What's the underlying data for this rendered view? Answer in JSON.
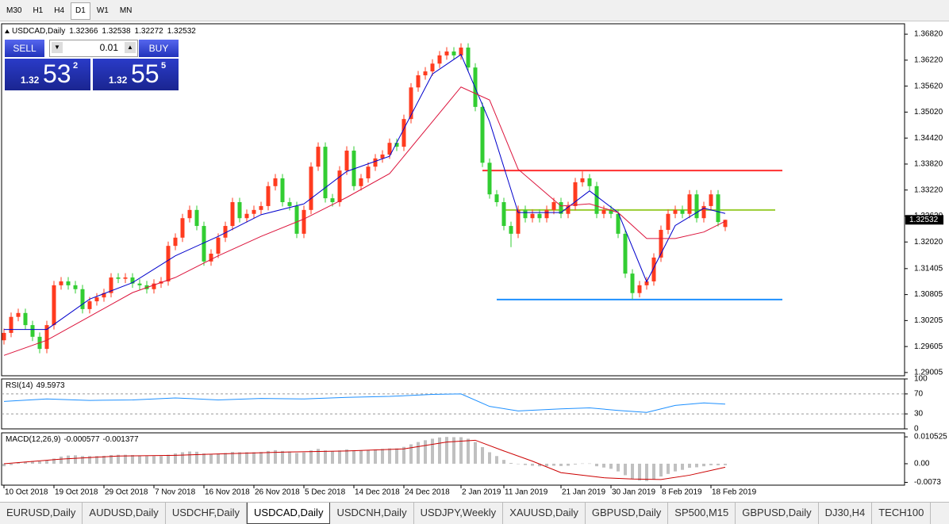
{
  "toolbar": [
    {
      "label": "M30",
      "active": false
    },
    {
      "label": "H1",
      "active": false
    },
    {
      "label": "H4",
      "active": false
    },
    {
      "label": "D1",
      "active": true
    },
    {
      "label": "W1",
      "active": false
    },
    {
      "label": "MN",
      "active": false
    }
  ],
  "trade_panel": {
    "sell": "SELL",
    "buy": "BUY",
    "lot": "0.01",
    "sell_price": {
      "big": "1.32",
      "pips": "53",
      "fraction": "2"
    },
    "buy_price": {
      "big": "1.32",
      "pips": "55",
      "fraction": "5"
    }
  },
  "tabs": [
    {
      "label": "EURUSD,Daily",
      "active": false
    },
    {
      "label": "AUDUSD,Daily",
      "active": false
    },
    {
      "label": "USDCHF,Daily",
      "active": false
    },
    {
      "label": "USDCAD,Daily",
      "active": true
    },
    {
      "label": "USDCNH,Daily",
      "active": false
    },
    {
      "label": "USDJPY,Weekly",
      "active": false
    },
    {
      "label": "XAUUSD,Daily",
      "active": false
    },
    {
      "label": "GBPUSD,Daily",
      "active": false
    },
    {
      "label": "SP500,M15",
      "active": false
    },
    {
      "label": "GBPUSD,Daily",
      "active": false
    },
    {
      "label": "DJ30,H4",
      "active": false
    },
    {
      "label": "TECH100",
      "active": false
    }
  ],
  "chart_data": [
    {
      "type": "candlestick",
      "title": "USDCAD,Daily",
      "up_color": "#ff3b1f",
      "down_color": "#32cd32",
      "categories": [
        "10 Oct 2018",
        null,
        null,
        null,
        null,
        null,
        null,
        "19 Oct 2018",
        null,
        null,
        null,
        null,
        null,
        null,
        "29 Oct 2018",
        null,
        null,
        null,
        null,
        null,
        null,
        "7 Nov 2018",
        null,
        null,
        null,
        null,
        null,
        null,
        "16 Nov 2018",
        null,
        null,
        null,
        null,
        null,
        null,
        "26 Nov 2018",
        null,
        null,
        null,
        null,
        null,
        null,
        "5 Dec 2018",
        null,
        null,
        null,
        null,
        null,
        null,
        "14 Dec 2018",
        null,
        null,
        null,
        null,
        null,
        null,
        "24 Dec 2018",
        null,
        null,
        null,
        null,
        null,
        null,
        null,
        "2 Jan 2019",
        null,
        null,
        null,
        null,
        null,
        "11 Jan 2019",
        null,
        null,
        null,
        null,
        null,
        null,
        null,
        "21 Jan 2019",
        null,
        null,
        null,
        null,
        null,
        null,
        "30 Jan 2019",
        null,
        null,
        null,
        null,
        null,
        null,
        "8 Feb 2019",
        null,
        null,
        null,
        null,
        null,
        null,
        "18 Feb 2019",
        null,
        null
      ],
      "open": [
        1.2975,
        1.2992,
        1.3029,
        1.3038,
        1.301,
        1.2983,
        1.2955,
        1.301,
        1.3102,
        1.3111,
        1.3102,
        1.3093,
        1.3047,
        1.3065,
        1.3074,
        1.3084,
        1.312,
        1.3117,
        1.312,
        1.3106,
        1.3102,
        1.3093,
        1.3106,
        1.3111,
        1.3193,
        1.3212,
        1.3257,
        1.3276,
        1.3239,
        1.3157,
        1.3175,
        1.3212,
        1.3239,
        1.3294,
        1.3257,
        1.3267,
        1.3276,
        1.3285,
        1.3331,
        1.3349,
        1.3294,
        1.3285,
        1.3221,
        1.3276,
        1.3376,
        1.3422,
        1.3303,
        1.3294,
        1.3367,
        1.3413,
        1.3331,
        1.3349,
        1.3376,
        1.3395,
        1.3404,
        1.3431,
        1.3422,
        1.3486,
        1.3559,
        1.3587,
        1.3596,
        1.3614,
        1.3633,
        1.3642,
        1.3633,
        1.3651,
        1.3605,
        1.3514,
        1.3385,
        1.3312,
        1.3294,
        1.3239,
        1.3221,
        1.3276,
        1.3257,
        1.3267,
        1.3257,
        1.3276,
        1.3294,
        1.3267,
        1.3285,
        1.334,
        1.3349,
        1.3331,
        1.3267,
        1.3276,
        1.3267,
        1.3221,
        1.3129,
        1.3084,
        1.3102,
        1.3111,
        1.3166,
        1.323,
        1.3267,
        1.3276,
        1.3267,
        1.3312,
        1.3257,
        1.3285,
        1.3312,
        1.32366
      ],
      "high": [
        1.3002,
        1.3039,
        1.3048,
        1.3048,
        1.302,
        1.2993,
        1.302,
        1.3112,
        1.3121,
        1.3121,
        1.3112,
        1.3103,
        1.3075,
        1.3084,
        1.3094,
        1.313,
        1.313,
        1.313,
        1.313,
        1.3116,
        1.3112,
        1.3116,
        1.3121,
        1.3203,
        1.3222,
        1.3267,
        1.3286,
        1.3286,
        1.3249,
        1.3185,
        1.3222,
        1.3249,
        1.3304,
        1.3304,
        1.3277,
        1.3286,
        1.3295,
        1.3341,
        1.3359,
        1.3359,
        1.3304,
        1.3295,
        1.3286,
        1.3386,
        1.3432,
        1.3432,
        1.3313,
        1.3377,
        1.3423,
        1.3423,
        1.3359,
        1.3386,
        1.3405,
        1.3414,
        1.3441,
        1.3441,
        1.3496,
        1.3569,
        1.3597,
        1.3606,
        1.3624,
        1.3643,
        1.3652,
        1.3652,
        1.3661,
        1.3661,
        1.3615,
        1.3524,
        1.3395,
        1.3322,
        1.3304,
        1.3249,
        1.3286,
        1.3286,
        1.3277,
        1.3277,
        1.3286,
        1.3304,
        1.3304,
        1.3295,
        1.335,
        1.3365,
        1.3359,
        1.3341,
        1.3286,
        1.3286,
        1.3277,
        1.3231,
        1.3139,
        1.3112,
        1.3121,
        1.3176,
        1.324,
        1.3277,
        1.3286,
        1.3286,
        1.3322,
        1.3322,
        1.3295,
        1.3322,
        1.3322,
        1.32538
      ],
      "low": [
        1.2965,
        1.2982,
        1.3019,
        1.3,
        1.2973,
        1.2945,
        1.2945,
        1.3,
        1.3092,
        1.3092,
        1.3083,
        1.3037,
        1.3037,
        1.3055,
        1.3064,
        1.3074,
        1.3107,
        1.3107,
        1.3096,
        1.3092,
        1.3083,
        1.3083,
        1.3096,
        1.3101,
        1.3183,
        1.3202,
        1.3247,
        1.3229,
        1.3147,
        1.3147,
        1.3165,
        1.3202,
        1.3229,
        1.3247,
        1.3247,
        1.3257,
        1.3266,
        1.3275,
        1.3321,
        1.3284,
        1.3275,
        1.3211,
        1.3211,
        1.3266,
        1.3366,
        1.3293,
        1.3284,
        1.3284,
        1.3357,
        1.3321,
        1.3321,
        1.3339,
        1.3366,
        1.3385,
        1.3394,
        1.3412,
        1.3412,
        1.3476,
        1.3549,
        1.3577,
        1.3586,
        1.3604,
        1.3623,
        1.3623,
        1.3623,
        1.3595,
        1.3504,
        1.3375,
        1.3302,
        1.3284,
        1.3229,
        1.319,
        1.3211,
        1.3247,
        1.3247,
        1.3247,
        1.3247,
        1.3266,
        1.3257,
        1.3257,
        1.3275,
        1.333,
        1.3321,
        1.3257,
        1.3257,
        1.3257,
        1.3211,
        1.3119,
        1.307,
        1.3074,
        1.3092,
        1.3101,
        1.3156,
        1.322,
        1.3257,
        1.3257,
        1.3257,
        1.3247,
        1.3247,
        1.3275,
        1.3238,
        1.32272
      ],
      "close": [
        1.2992,
        1.3029,
        1.3038,
        1.301,
        1.2983,
        1.2955,
        1.301,
        1.3102,
        1.3111,
        1.3102,
        1.3093,
        1.3047,
        1.3065,
        1.3074,
        1.3084,
        1.312,
        1.3117,
        1.312,
        1.3106,
        1.3102,
        1.3093,
        1.3106,
        1.3111,
        1.3193,
        1.3212,
        1.3257,
        1.3276,
        1.3239,
        1.3157,
        1.3175,
        1.3212,
        1.3239,
        1.3294,
        1.3257,
        1.3267,
        1.3276,
        1.3285,
        1.3331,
        1.3349,
        1.3294,
        1.3285,
        1.3221,
        1.3276,
        1.3376,
        1.3422,
        1.3303,
        1.3294,
        1.3367,
        1.3413,
        1.3331,
        1.3349,
        1.3376,
        1.3395,
        1.3404,
        1.3431,
        1.3422,
        1.3486,
        1.3559,
        1.3587,
        1.3596,
        1.3614,
        1.3633,
        1.3642,
        1.3633,
        1.3651,
        1.3605,
        1.3514,
        1.3385,
        1.3312,
        1.3294,
        1.3239,
        1.3221,
        1.3276,
        1.3257,
        1.3267,
        1.3257,
        1.3276,
        1.3294,
        1.3267,
        1.3285,
        1.334,
        1.3349,
        1.3331,
        1.3267,
        1.3276,
        1.3267,
        1.3221,
        1.3129,
        1.3084,
        1.3102,
        1.3111,
        1.3166,
        1.323,
        1.3267,
        1.3276,
        1.3267,
        1.3312,
        1.3257,
        1.3285,
        1.3312,
        1.3248,
        1.32532
      ],
      "ma": [
        {
          "color": "#0000cc",
          "x": [
            0,
            6,
            12,
            18,
            24,
            30,
            36,
            42,
            48,
            54,
            60,
            64,
            68,
            72,
            78,
            82,
            86,
            90,
            94,
            98,
            101
          ],
          "values": [
            1.3,
            1.3,
            1.307,
            1.3108,
            1.317,
            1.3215,
            1.3265,
            1.329,
            1.3365,
            1.34,
            1.359,
            1.3635,
            1.348,
            1.327,
            1.327,
            1.332,
            1.327,
            1.311,
            1.324,
            1.328,
            1.3268
          ]
        },
        {
          "color": "#dc143c",
          "x": [
            0,
            6,
            12,
            18,
            24,
            30,
            36,
            42,
            48,
            54,
            60,
            64,
            68,
            72,
            78,
            82,
            86,
            90,
            94,
            98,
            101
          ],
          "values": [
            1.294,
            1.2975,
            1.303,
            1.3085,
            1.312,
            1.317,
            1.3215,
            1.3255,
            1.3305,
            1.336,
            1.348,
            1.356,
            1.353,
            1.337,
            1.3285,
            1.329,
            1.327,
            1.321,
            1.321,
            1.3225,
            1.325
          ]
        }
      ],
      "levels": [
        {
          "price": 1.3367,
          "color": "#ff3030",
          "start": 67,
          "end": 109
        },
        {
          "price": 1.3276,
          "color": "#9acd32",
          "start": 70,
          "end": 108
        },
        {
          "price": 1.3069,
          "color": "#1e90ff",
          "start": 69,
          "end": 109
        }
      ],
      "ylim": [
        1.2893,
        1.3706
      ],
      "yticks": [
        {
          "value": 1.3682,
          "label": "1.36820"
        },
        {
          "value": 1.3622,
          "label": "1.36220"
        },
        {
          "value": 1.3562,
          "label": "1.35620"
        },
        {
          "value": 1.3502,
          "label": "1.35020"
        },
        {
          "value": 1.3442,
          "label": "1.34420"
        },
        {
          "value": 1.3382,
          "label": "1.33820"
        },
        {
          "value": 1.3322,
          "label": "1.33220"
        },
        {
          "value": 1.3262,
          "label": "1.32620"
        },
        {
          "value": 1.3202,
          "label": "1.32020"
        },
        1.31405,
        1.30805,
        1.30205,
        1.29605,
        1.29005
      ]
    },
    {
      "type": "line",
      "title": "RSI(14)",
      "color": "#1e90ff",
      "x": [
        0,
        6,
        12,
        18,
        24,
        30,
        36,
        42,
        48,
        54,
        60,
        64,
        68,
        72,
        78,
        82,
        86,
        90,
        94,
        98,
        101
      ],
      "values": [
        55,
        60,
        57,
        58,
        62,
        58,
        61,
        60,
        63,
        65,
        69,
        70,
        45,
        36,
        40,
        42,
        37,
        33,
        47,
        52,
        49.5973
      ],
      "ylim": [
        0,
        100
      ],
      "yticks": [
        100,
        70,
        30,
        0
      ],
      "levels": [
        70,
        30
      ]
    },
    {
      "type": "macd",
      "title": "MACD(12,26,9)",
      "ylim": [
        -0.0084,
        0.0121
      ],
      "yticks": [
        0.010525,
        {
          "value": 0,
          "label": "0.00"
        },
        -0.0073
      ],
      "histogram": {
        "color": "#c0c0c0",
        "values": [
          -0.001,
          -0.0005,
          0.0003,
          0.0008,
          0.001,
          0.0009,
          0.0012,
          0.002,
          0.0028,
          0.0032,
          0.0033,
          0.003,
          0.003,
          0.003,
          0.0031,
          0.0034,
          0.0035,
          0.0035,
          0.0034,
          0.0032,
          0.003,
          0.003,
          0.003,
          0.0035,
          0.004,
          0.0045,
          0.0048,
          0.0047,
          0.004,
          0.0038,
          0.004,
          0.0042,
          0.0046,
          0.0045,
          0.0045,
          0.0045,
          0.0046,
          0.005,
          0.0053,
          0.005,
          0.0048,
          0.0042,
          0.0044,
          0.0052,
          0.0058,
          0.0052,
          0.0048,
          0.0052,
          0.0056,
          0.0052,
          0.0052,
          0.0054,
          0.0056,
          0.0058,
          0.006,
          0.006,
          0.0066,
          0.0076,
          0.0085,
          0.0092,
          0.0098,
          0.0103,
          0.0105,
          0.0104,
          0.0104,
          0.0098,
          0.0085,
          0.0065,
          0.0045,
          0.003,
          0.0015,
          0.0003,
          0,
          -0.0005,
          -0.0008,
          -0.001,
          -0.001,
          -0.0008,
          -0.0009,
          -0.0008,
          -0.0003,
          0.0001,
          0.0001,
          -0.001,
          -0.0015,
          -0.002,
          -0.003,
          -0.0045,
          -0.006,
          -0.0066,
          -0.0068,
          -0.0062,
          -0.005,
          -0.004,
          -0.003,
          -0.0024,
          -0.0016,
          -0.0014,
          -0.001,
          -0.0006,
          -0.0006,
          -0.000577
        ]
      },
      "signal": {
        "color": "#cc0000",
        "x": [
          0,
          8,
          16,
          24,
          32,
          40,
          48,
          56,
          62,
          66,
          70,
          74,
          78,
          84,
          88,
          92,
          96,
          101
        ],
        "values": [
          0,
          0.0018,
          0.003,
          0.0033,
          0.004,
          0.0046,
          0.005,
          0.0058,
          0.0085,
          0.0092,
          0.005,
          0.001,
          -0.0035,
          -0.0055,
          -0.006,
          -0.0062,
          -0.0045,
          -0.001377
        ]
      }
    }
  ]
}
